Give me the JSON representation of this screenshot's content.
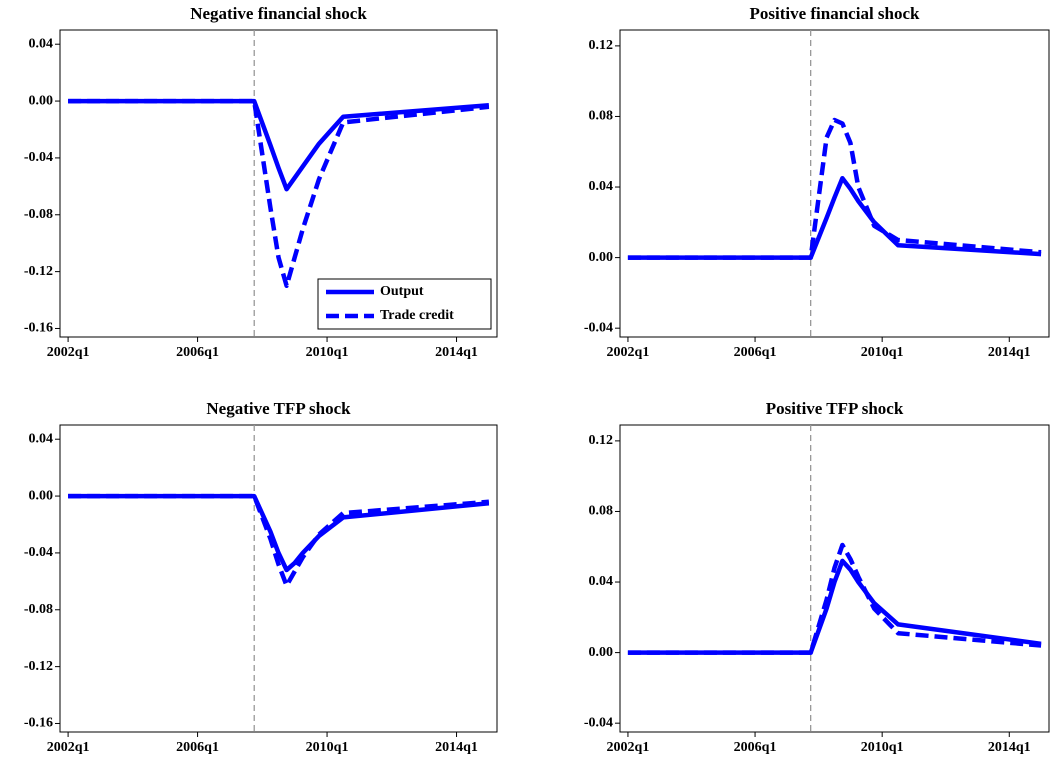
{
  "chart_data": [
    {
      "type": "line",
      "title": "Negative financial shock",
      "x": [
        "2002q1",
        "2007q4",
        "2008q2",
        "2008q3",
        "2008q4",
        "2009q1",
        "2009q2",
        "2009q4",
        "2010q3",
        "2015q1"
      ],
      "series": [
        {
          "name": "Output",
          "color": "#0000ff",
          "style": "solid",
          "values": [
            0,
            0,
            -0.031,
            -0.047,
            -0.062,
            -0.054,
            -0.046,
            -0.03,
            -0.011,
            -0.003
          ]
        },
        {
          "name": "Trade credit",
          "color": "#0000ff",
          "style": "dashed",
          "values": [
            0,
            0,
            -0.075,
            -0.11,
            -0.13,
            -0.11,
            -0.09,
            -0.055,
            -0.015,
            -0.004
          ]
        }
      ],
      "xlim": [
        "2001q4",
        "2015q2"
      ],
      "xticks": [
        "2002q1",
        "2006q1",
        "2010q1",
        "2014q1"
      ],
      "ylim": [
        -0.166,
        0.05
      ],
      "yticks": [
        0.04,
        {
          "value": 0,
          "label": "0.00"
        },
        -0.04,
        -0.08,
        -0.12,
        -0.16
      ],
      "vline": "2007q4",
      "legend": "lower right"
    },
    {
      "type": "line",
      "title": "Positive financial shock",
      "x": [
        "2002q1",
        "2007q4",
        "2008q2",
        "2008q3",
        "2008q4",
        "2009q1",
        "2009q2",
        "2009q4",
        "2010q3",
        "2015q1"
      ],
      "series": [
        {
          "color": "#0000ff",
          "style": "solid",
          "values": [
            0,
            0,
            0.0225,
            0.034,
            0.045,
            0.039,
            0.032,
            0.02,
            0.007,
            0.002
          ]
        },
        {
          "color": "#0000ff",
          "style": "dashed",
          "values": [
            0,
            0,
            0.068,
            0.078,
            0.076,
            0.065,
            0.04,
            0.018,
            0.01,
            0.003
          ]
        }
      ],
      "xlim": [
        "2001q4",
        "2015q2"
      ],
      "xticks": [
        "2002q1",
        "2006q1",
        "2010q1",
        "2014q1"
      ],
      "ylim": [
        -0.045,
        0.129
      ],
      "yticks": [
        0.12,
        0.08,
        0.04,
        {
          "value": 0,
          "label": "0.00"
        },
        -0.04
      ],
      "vline": "2007q4"
    },
    {
      "type": "line",
      "title": "Negative TFP shock",
      "x": [
        "2002q1",
        "2007q4",
        "2008q2",
        "2008q3",
        "2008q4",
        "2009q1",
        "2009q2",
        "2009q4",
        "2010q3",
        "2015q1"
      ],
      "series": [
        {
          "color": "#0000ff",
          "style": "solid",
          "values": [
            0,
            0,
            -0.025,
            -0.04,
            -0.052,
            -0.047,
            -0.04,
            -0.028,
            -0.015,
            -0.005
          ]
        },
        {
          "color": "#0000ff",
          "style": "dashed",
          "values": [
            0,
            0,
            -0.03,
            -0.048,
            -0.063,
            -0.053,
            -0.043,
            -0.027,
            -0.012,
            -0.004
          ]
        }
      ],
      "xlim": [
        "2001q4",
        "2015q2"
      ],
      "xticks": [
        "2002q1",
        "2006q1",
        "2010q1",
        "2014q1"
      ],
      "ylim": [
        -0.166,
        0.05
      ],
      "yticks": [
        0.04,
        {
          "value": 0,
          "label": "0.00"
        },
        -0.04,
        -0.08,
        -0.12,
        -0.16
      ],
      "vline": "2007q4"
    },
    {
      "type": "line",
      "title": "Positive TFP shock",
      "x": [
        "2002q1",
        "2007q4",
        "2008q2",
        "2008q3",
        "2008q4",
        "2009q1",
        "2009q2",
        "2009q4",
        "2010q3",
        "2015q1"
      ],
      "series": [
        {
          "color": "#0000ff",
          "style": "solid",
          "values": [
            0,
            0,
            0.025,
            0.04,
            0.052,
            0.047,
            0.04,
            0.028,
            0.016,
            0.005
          ]
        },
        {
          "color": "#0000ff",
          "style": "dashed",
          "values": [
            0,
            0,
            0.03,
            0.048,
            0.061,
            0.053,
            0.043,
            0.025,
            0.011,
            0.004
          ]
        }
      ],
      "xlim": [
        "2001q4",
        "2015q2"
      ],
      "xticks": [
        "2002q1",
        "2006q1",
        "2010q1",
        "2014q1"
      ],
      "ylim": [
        -0.045,
        0.129
      ],
      "yticks": [
        0.12,
        0.08,
        0.04,
        {
          "value": 0,
          "label": "0.00"
        },
        -0.04
      ],
      "vline": "2007q4"
    }
  ]
}
